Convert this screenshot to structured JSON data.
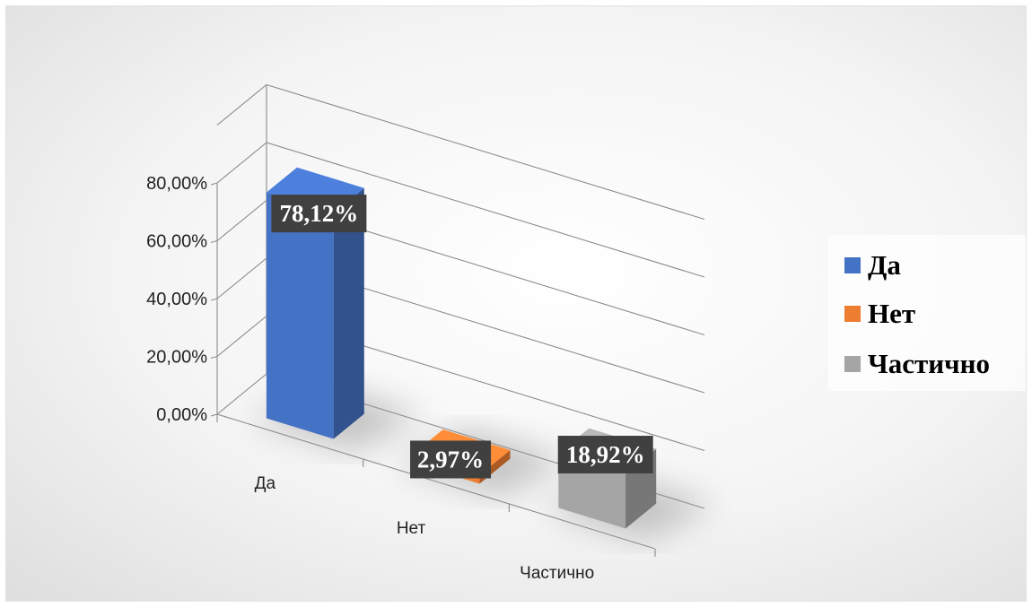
{
  "chart_data": {
    "type": "bar",
    "categories": [
      "Да",
      "Нет",
      "Частично"
    ],
    "values": [
      78.12,
      2.97,
      18.92
    ],
    "data_labels": [
      "78,12%",
      "2,97%",
      "18,92%"
    ],
    "y_ticks": [
      "0,00%",
      "20,00%",
      "40,00%",
      "60,00%",
      "80,00%"
    ],
    "ylim": [
      0,
      80
    ],
    "grid": true,
    "legend_position": "right",
    "style": "3d-column",
    "colors": [
      "#4472C4",
      "#ED7D31",
      "#A5A5A5"
    ]
  },
  "legend": {
    "items": [
      {
        "label": "Да",
        "color": "#4472C4"
      },
      {
        "label": "Нет",
        "color": "#ED7D31"
      },
      {
        "label": "Частично",
        "color": "#A5A5A5"
      }
    ]
  }
}
